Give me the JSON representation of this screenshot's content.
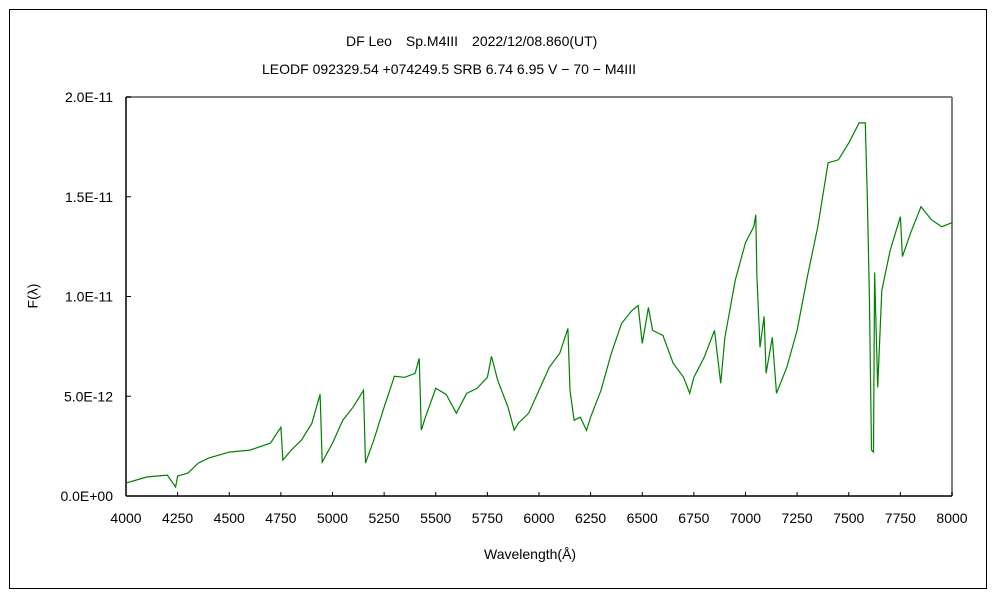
{
  "chart_data": {
    "type": "line",
    "title": "DF Leo　Sp.M4III　2022/12/08.860(UT)",
    "subtitle": "LEODF 092329.54 +074249.5 SRB 6.74 6.95 V − 70 − M4III",
    "xlabel": "Wavelength(Å)",
    "ylabel": "F(λ)",
    "xlim": [
      4000,
      8000
    ],
    "ylim": [
      0,
      2e-11
    ],
    "y_unit_scale": 1e-12,
    "grid": false,
    "x_ticks": [
      "4000",
      "4250",
      "4500",
      "4750",
      "5000",
      "5250",
      "5500",
      "5750",
      "6000",
      "6250",
      "6500",
      "6750",
      "7000",
      "7250",
      "7500",
      "7750",
      "8000"
    ],
    "y_ticks": [
      {
        "value": 0,
        "label": "0.0E+00"
      },
      {
        "value": 5,
        "label": "5.0E-12"
      },
      {
        "value": 10,
        "label": "1.0E-11"
      },
      {
        "value": 15,
        "label": "1.5E-11"
      },
      {
        "value": 20,
        "label": "2.0E-11"
      }
    ],
    "series": [
      {
        "name": "DF Leo",
        "color": "#008000",
        "x": [
          4000,
          4100,
          4200,
          4240,
          4250,
          4300,
          4350,
          4400,
          4500,
          4600,
          4700,
          4750,
          4760,
          4800,
          4850,
          4900,
          4940,
          4950,
          5000,
          5050,
          5100,
          5150,
          5160,
          5200,
          5250,
          5300,
          5350,
          5400,
          5420,
          5430,
          5450,
          5500,
          5550,
          5600,
          5650,
          5700,
          5750,
          5770,
          5800,
          5850,
          5880,
          5900,
          5950,
          6000,
          6050,
          6100,
          6140,
          6150,
          6170,
          6200,
          6230,
          6250,
          6300,
          6350,
          6400,
          6450,
          6480,
          6500,
          6530,
          6550,
          6600,
          6650,
          6700,
          6730,
          6750,
          6800,
          6850,
          6880,
          6900,
          6950,
          7000,
          7040,
          7050,
          7055,
          7070,
          7090,
          7100,
          7130,
          7150,
          7200,
          7250,
          7300,
          7350,
          7400,
          7450,
          7500,
          7550,
          7580,
          7590,
          7600,
          7610,
          7620,
          7625,
          7640,
          7660,
          7700,
          7750,
          7760,
          7800,
          7850,
          7900,
          7950,
          8000
        ],
        "y": [
          0.65,
          0.95,
          1.05,
          0.45,
          1.0,
          1.15,
          1.65,
          1.9,
          2.2,
          2.3,
          2.65,
          3.45,
          1.8,
          2.3,
          2.8,
          3.65,
          5.1,
          1.7,
          2.65,
          3.8,
          4.45,
          5.3,
          1.65,
          2.8,
          4.45,
          6.0,
          5.95,
          6.15,
          6.9,
          3.3,
          3.95,
          5.4,
          5.1,
          4.15,
          5.15,
          5.4,
          5.95,
          7.0,
          5.8,
          4.45,
          3.3,
          3.65,
          4.15,
          5.3,
          6.45,
          7.15,
          8.4,
          5.3,
          3.8,
          3.95,
          3.3,
          3.95,
          5.3,
          7.15,
          8.65,
          9.3,
          9.55,
          7.65,
          9.45,
          8.3,
          8.05,
          6.65,
          5.95,
          5.15,
          5.95,
          6.95,
          8.3,
          5.65,
          7.95,
          10.8,
          12.7,
          13.5,
          14.1,
          11.0,
          7.45,
          9.0,
          6.15,
          7.95,
          5.15,
          6.45,
          8.3,
          11.0,
          13.5,
          16.7,
          16.85,
          17.7,
          18.7,
          18.7,
          15.0,
          10.0,
          2.3,
          2.2,
          11.2,
          5.45,
          10.3,
          12.3,
          14.0,
          12.0,
          13.2,
          14.5,
          13.85,
          13.5,
          13.7
        ]
      }
    ]
  }
}
